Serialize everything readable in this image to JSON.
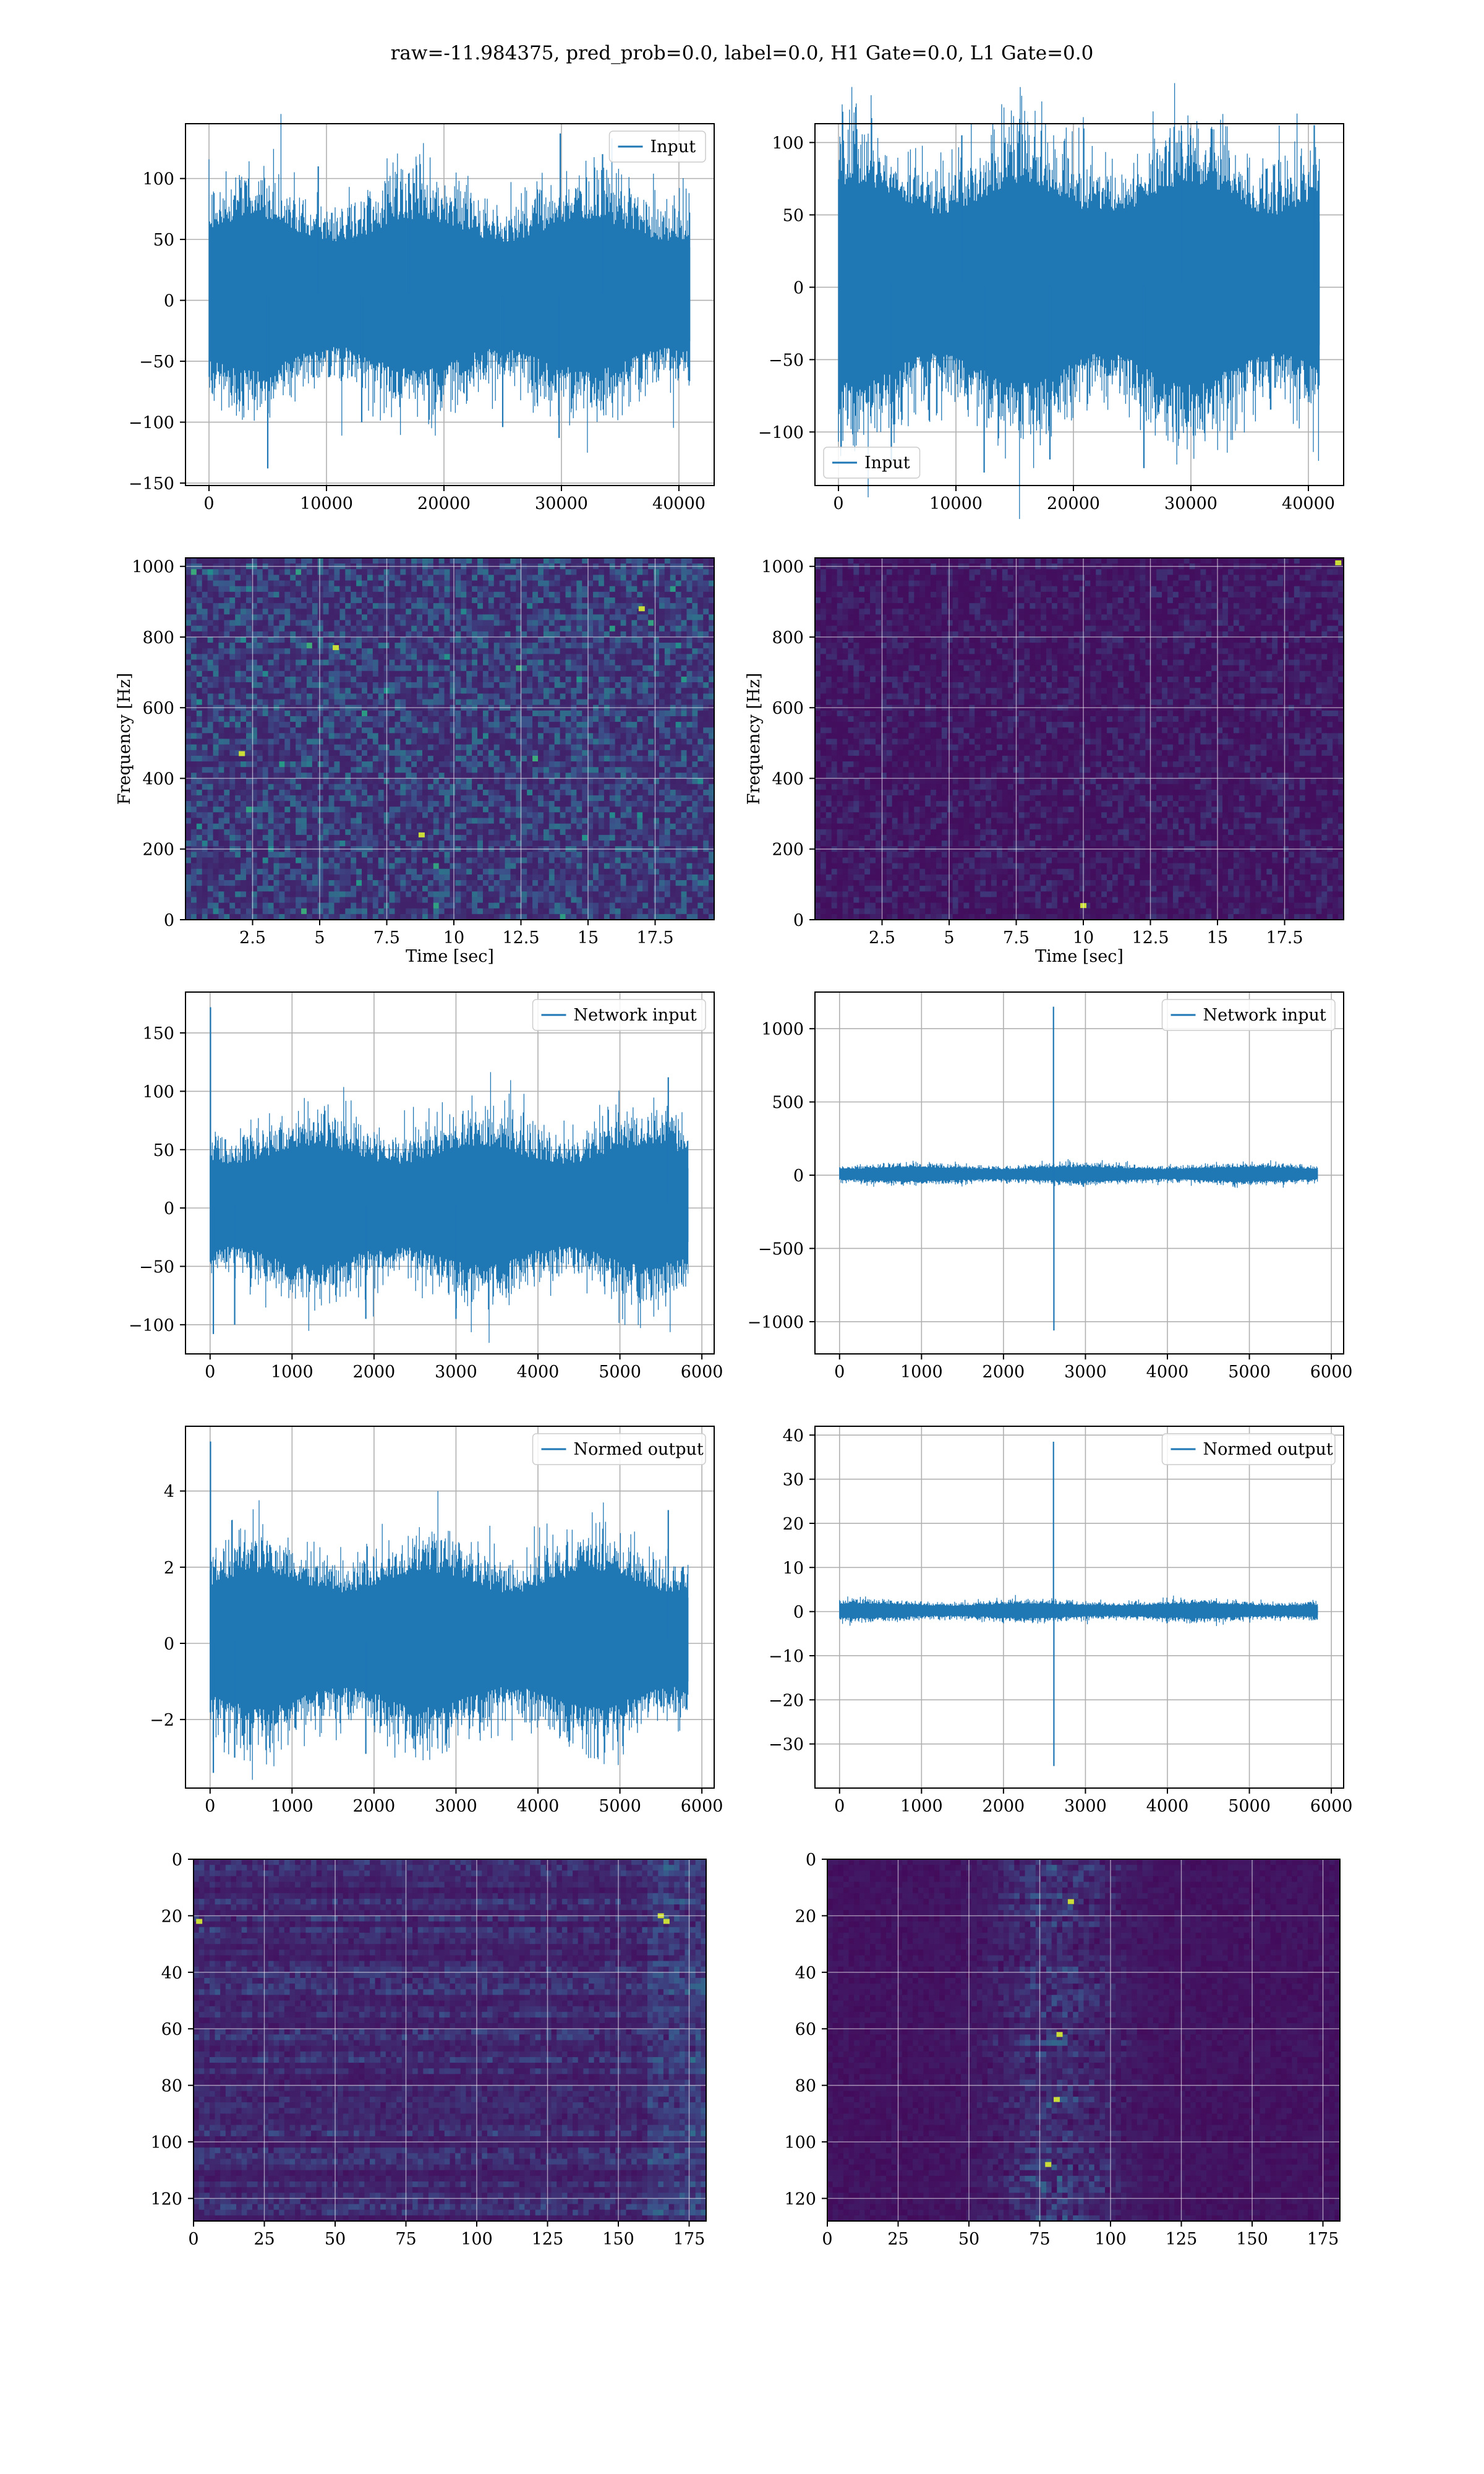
{
  "figure": {
    "title": "raw=-11.984375, pred_prob=0.0, label=0.0, H1 Gate=0.0, L1 Gate=0.0",
    "colors": {
      "line": "#1f77b4",
      "grid": "#b0b0b0",
      "axes": "#000000",
      "viridis_low": "#440154",
      "viridis_high": "#fde725"
    }
  },
  "chart_data": [
    {
      "id": "h1-input",
      "type": "line",
      "title": "",
      "xlabel": "",
      "ylabel": "",
      "xlim": [
        -2000,
        43000
      ],
      "ylim": [
        -152,
        145
      ],
      "xticks": [
        0,
        10000,
        20000,
        30000,
        40000
      ],
      "yticks": [
        -150,
        -100,
        -50,
        0,
        50,
        100
      ],
      "legend": {
        "loc": "upper right"
      },
      "series": [
        {
          "name": "Input",
          "n": 40960,
          "x_range": [
            0,
            40960
          ],
          "typical_range": [
            -65,
            75
          ],
          "max": 137,
          "min": -138,
          "spikes": [
            [
              5000,
              -138
            ],
            [
              9300,
              110
            ],
            [
              13000,
              -100
            ],
            [
              17000,
              104
            ],
            [
              25000,
              -104
            ],
            [
              29800,
              -113
            ],
            [
              29900,
              137
            ],
            [
              33500,
              120
            ]
          ]
        }
      ]
    },
    {
      "id": "l1-input",
      "type": "line",
      "title": "",
      "xlabel": "",
      "ylabel": "",
      "xlim": [
        -2000,
        43000
      ],
      "ylim": [
        -137,
        113
      ],
      "xticks": [
        0,
        10000,
        20000,
        30000,
        40000
      ],
      "yticks": [
        -100,
        -50,
        0,
        50,
        100
      ],
      "legend": {
        "loc": "lower left"
      },
      "series": [
        {
          "name": "Input",
          "n": 40960,
          "x_range": [
            0,
            40960
          ],
          "typical_range": [
            -75,
            80
          ],
          "max": 112,
          "min": -128,
          "spikes": [
            [
              4500,
              -120
            ],
            [
              10500,
              105
            ],
            [
              12400,
              -128
            ],
            [
              18000,
              -119
            ],
            [
              26000,
              -125
            ],
            [
              29200,
              108
            ],
            [
              40500,
              112
            ]
          ]
        }
      ]
    },
    {
      "id": "h1-spectrogram",
      "type": "heatmap",
      "title": "",
      "xlabel": "Time [sec]",
      "ylabel": "Frequency [Hz]",
      "xlim": [
        0,
        19.7
      ],
      "ylim": [
        0,
        1024
      ],
      "xticks": [
        2.5,
        5.0,
        7.5,
        10.0,
        12.5,
        15.0,
        17.5
      ],
      "yticks": [
        0,
        200,
        400,
        600,
        800,
        1000
      ],
      "colormap": "viridis",
      "intensity": "high noise, speckled",
      "hotspots": [
        [
          17.0,
          880
        ],
        [
          8.8,
          240
        ],
        [
          5.6,
          770
        ],
        [
          2.1,
          470
        ]
      ]
    },
    {
      "id": "l1-spectrogram",
      "type": "heatmap",
      "title": "",
      "xlabel": "Time [sec]",
      "ylabel": "Frequency [Hz]",
      "xlim": [
        0,
        19.7
      ],
      "ylim": [
        0,
        1024
      ],
      "xticks": [
        2.5,
        5.0,
        7.5,
        10.0,
        12.5,
        15.0,
        17.5
      ],
      "yticks": [
        0,
        200,
        400,
        600,
        800,
        1000
      ],
      "colormap": "viridis",
      "intensity": "low noise, dark",
      "hotspots": [
        [
          10.0,
          40
        ],
        [
          19.5,
          1010
        ]
      ]
    },
    {
      "id": "h1-network-input",
      "type": "line",
      "title": "",
      "xlabel": "",
      "ylabel": "",
      "xlim": [
        -300,
        6150
      ],
      "ylim": [
        -125,
        185
      ],
      "xticks": [
        0,
        1000,
        2000,
        3000,
        4000,
        5000,
        6000
      ],
      "yticks": [
        -100,
        -50,
        0,
        50,
        100,
        150
      ],
      "legend": {
        "loc": "upper right"
      },
      "series": [
        {
          "name": "Network input",
          "n": 5836,
          "x_range": [
            0,
            5836
          ],
          "typical_range": [
            -55,
            60
          ],
          "max": 172,
          "min": -108,
          "spikes": [
            [
              5,
              172
            ],
            [
              40,
              -108
            ],
            [
              300,
              -100
            ],
            [
              1900,
              -95
            ],
            [
              3000,
              -95
            ],
            [
              5590,
              112
            ],
            [
              5820,
              -48
            ]
          ]
        }
      ]
    },
    {
      "id": "l1-network-input",
      "type": "line",
      "title": "",
      "xlabel": "",
      "ylabel": "",
      "xlim": [
        -300,
        6150
      ],
      "ylim": [
        -1220,
        1250
      ],
      "xticks": [
        0,
        1000,
        2000,
        3000,
        4000,
        5000,
        6000
      ],
      "yticks": [
        -1000,
        -500,
        0,
        500,
        1000
      ],
      "legend": {
        "loc": "upper right"
      },
      "series": [
        {
          "name": "Network input",
          "n": 5836,
          "x_range": [
            0,
            5836
          ],
          "typical_range": [
            -45,
            60
          ],
          "max": 1150,
          "min": -1060,
          "spikes": [
            [
              2610,
              1150
            ],
            [
              2615,
              -1060
            ]
          ]
        }
      ]
    },
    {
      "id": "h1-normed-output",
      "type": "line",
      "title": "",
      "xlabel": "",
      "ylabel": "",
      "xlim": [
        -300,
        6150
      ],
      "ylim": [
        -3.8,
        5.7
      ],
      "xticks": [
        0,
        1000,
        2000,
        3000,
        4000,
        5000,
        6000
      ],
      "yticks": [
        -2,
        0,
        2,
        4
      ],
      "legend": {
        "loc": "upper right"
      },
      "series": [
        {
          "name": "Normed output",
          "n": 5836,
          "x_range": [
            0,
            5836
          ],
          "typical_range": [
            -1.9,
            2.1
          ],
          "max": 5.3,
          "min": -3.4,
          "spikes": [
            [
              5,
              5.3
            ],
            [
              40,
              -3.4
            ],
            [
              300,
              -3.0
            ],
            [
              1900,
              -2.9
            ],
            [
              5590,
              3.5
            ]
          ]
        }
      ]
    },
    {
      "id": "l1-normed-output",
      "type": "line",
      "title": "",
      "xlabel": "",
      "ylabel": "",
      "xlim": [
        -300,
        6150
      ],
      "ylim": [
        -40,
        42
      ],
      "xticks": [
        0,
        1000,
        2000,
        3000,
        4000,
        5000,
        6000
      ],
      "yticks": [
        -30,
        -20,
        -10,
        0,
        10,
        20,
        30,
        40
      ],
      "legend": {
        "loc": "upper right"
      },
      "series": [
        {
          "name": "Normed output",
          "n": 5836,
          "x_range": [
            0,
            5836
          ],
          "typical_range": [
            -1.6,
            2.0
          ],
          "max": 38.5,
          "min": -35,
          "spikes": [
            [
              2610,
              38.5
            ],
            [
              2615,
              -35
            ]
          ]
        }
      ]
    },
    {
      "id": "h1-features",
      "type": "heatmap",
      "title": "",
      "xlabel": "",
      "ylabel": "",
      "xlim": [
        0,
        181
      ],
      "ylim": [
        128,
        0
      ],
      "xticks": [
        0,
        25,
        50,
        75,
        100,
        125,
        150,
        175
      ],
      "yticks": [
        0,
        20,
        40,
        60,
        80,
        100,
        120
      ],
      "colormap": "viridis",
      "structure": "horizontal bands, brighter columns near 160-175",
      "hotspots": [
        [
          165,
          20
        ],
        [
          167,
          22
        ],
        [
          2,
          22
        ]
      ]
    },
    {
      "id": "l1-features",
      "type": "heatmap",
      "title": "",
      "xlabel": "",
      "ylabel": "",
      "xlim": [
        0,
        181
      ],
      "ylim": [
        128,
        0
      ],
      "xticks": [
        0,
        25,
        50,
        75,
        100,
        125,
        150,
        175
      ],
      "yticks": [
        0,
        20,
        40,
        60,
        80,
        100,
        120
      ],
      "colormap": "viridis",
      "structure": "activity concentrated in columns 55-100",
      "hotspots": [
        [
          82,
          62
        ],
        [
          81,
          85
        ],
        [
          86,
          15
        ],
        [
          78,
          108
        ]
      ]
    }
  ]
}
